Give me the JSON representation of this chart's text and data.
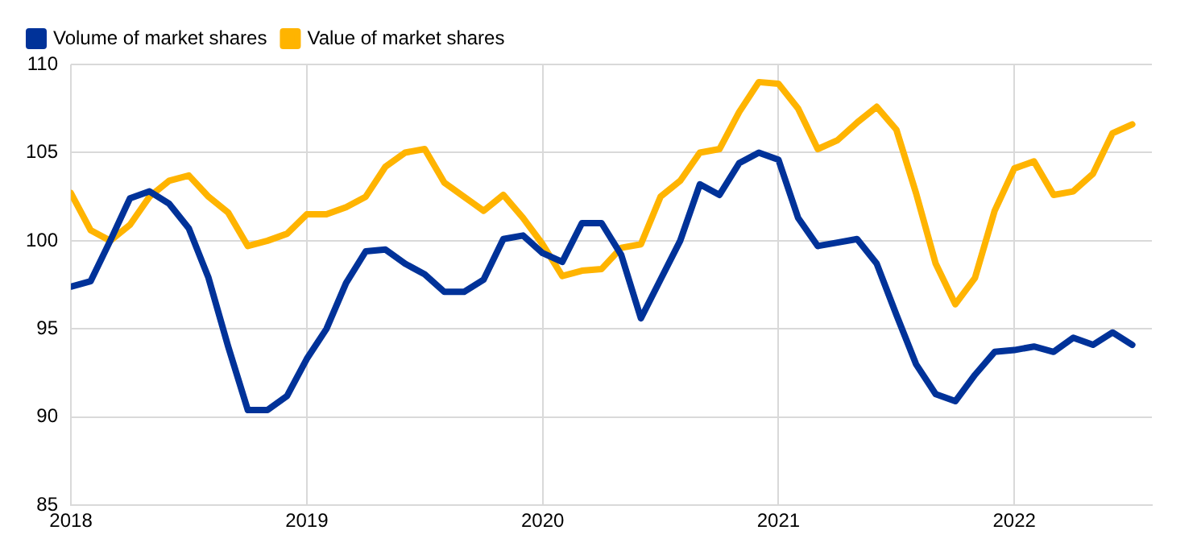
{
  "chart_data": {
    "type": "line",
    "x": [
      "2018-01",
      "2018-02",
      "2018-03",
      "2018-04",
      "2018-05",
      "2018-06",
      "2018-07",
      "2018-08",
      "2018-09",
      "2018-10",
      "2018-11",
      "2018-12",
      "2019-01",
      "2019-02",
      "2019-03",
      "2019-04",
      "2019-05",
      "2019-06",
      "2019-07",
      "2019-08",
      "2019-09",
      "2019-10",
      "2019-11",
      "2019-12",
      "2020-01",
      "2020-02",
      "2020-03",
      "2020-04",
      "2020-05",
      "2020-06",
      "2020-07",
      "2020-08",
      "2020-09",
      "2020-10",
      "2020-11",
      "2020-12",
      "2021-01",
      "2021-02",
      "2021-03",
      "2021-04",
      "2021-05",
      "2021-06",
      "2021-07",
      "2021-08",
      "2021-09",
      "2021-10",
      "2021-11",
      "2021-12",
      "2022-01",
      "2022-02",
      "2022-03",
      "2022-04",
      "2022-05",
      "2022-06",
      "2022-07"
    ],
    "series": [
      {
        "name": "Volume of market shares",
        "color": "#003299",
        "values": [
          97.4,
          97.7,
          100,
          102.4,
          102.8,
          102.1,
          100.7,
          97.9,
          94,
          90.4,
          90.4,
          91.2,
          93.3,
          95,
          97.6,
          99.4,
          99.5,
          98.7,
          98.1,
          97.1,
          97.1,
          97.8,
          100.1,
          100.3,
          99.3,
          98.8,
          101,
          101,
          99.2,
          95.6,
          97.8,
          100,
          103.2,
          102.6,
          104.4,
          105,
          104.6,
          101.3,
          99.7,
          99.9,
          100.1,
          98.7,
          95.8,
          93,
          91.3,
          90.9,
          92.4,
          93.7,
          93.8,
          94,
          93.7,
          94.5,
          94.1,
          94.8,
          94.1
        ]
      },
      {
        "name": "Value of market shares",
        "color": "#ffb400",
        "values": [
          102.7,
          100.6,
          100,
          100.9,
          102.5,
          103.4,
          103.7,
          102.5,
          101.6,
          99.7,
          100,
          100.4,
          101.5,
          101.5,
          101.9,
          102.5,
          104.2,
          105,
          105.2,
          103.3,
          102.5,
          101.7,
          102.6,
          101.3,
          99.8,
          98,
          98.3,
          98.4,
          99.6,
          99.8,
          102.5,
          103.4,
          105,
          105.2,
          107.3,
          109,
          108.9,
          107.5,
          105.2,
          105.7,
          106.7,
          107.6,
          106.3,
          102.7,
          98.7,
          96.4,
          97.9,
          101.7,
          104.1,
          104.5,
          102.6,
          102.8,
          103.8,
          106.1,
          106.6
        ]
      }
    ],
    "xlim": [
      "2018-01",
      "2022-08"
    ],
    "xticks": [
      {
        "value": "2018-01",
        "label": "2018"
      },
      {
        "value": "2019-01",
        "label": "2019"
      },
      {
        "value": "2020-01",
        "label": "2020"
      },
      {
        "value": "2021-01",
        "label": "2021"
      },
      {
        "value": "2022-01",
        "label": "2022"
      }
    ],
    "ylim": [
      85,
      110
    ],
    "yticks": [
      85,
      90,
      95,
      100,
      105,
      110
    ],
    "grid": true,
    "legend": "top left",
    "marker": "none",
    "line_style": "solid"
  }
}
